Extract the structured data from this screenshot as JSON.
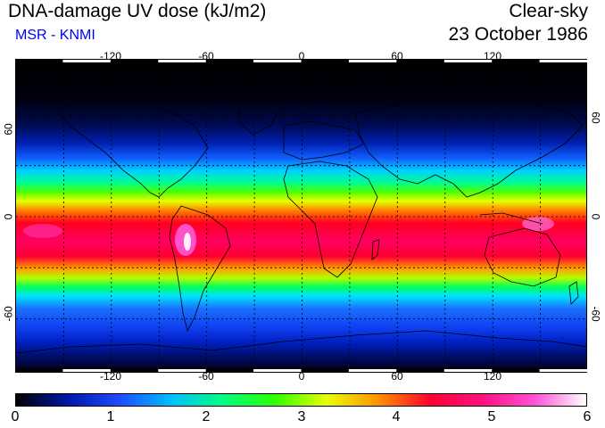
{
  "header": {
    "title": "DNA-damage UV dose (kJ/m2)",
    "credit": "MSR - KNMI",
    "condition": "Clear-sky",
    "date": "23 October 1986"
  },
  "map": {
    "lon_ticks": [
      "-120",
      "-60",
      "0",
      "60",
      "120"
    ],
    "lat_ticks": [
      "60",
      "0",
      "-60"
    ],
    "lon_range": [
      -180,
      180
    ],
    "lat_range": [
      -90,
      90
    ],
    "gridlines": "dashed, every 30 degrees"
  },
  "colorbar": {
    "labels": [
      "0",
      "1",
      "2",
      "3",
      "4",
      "5",
      "6"
    ],
    "range": [
      0,
      6
    ],
    "colors": [
      "#000000",
      "#0018a8",
      "#1e4cff",
      "#00c0ff",
      "#00ff80",
      "#30ff00",
      "#e8ff00",
      "#ff9000",
      "#ff0030",
      "#ff1080",
      "#ff50d8",
      "#ffffff"
    ]
  }
}
